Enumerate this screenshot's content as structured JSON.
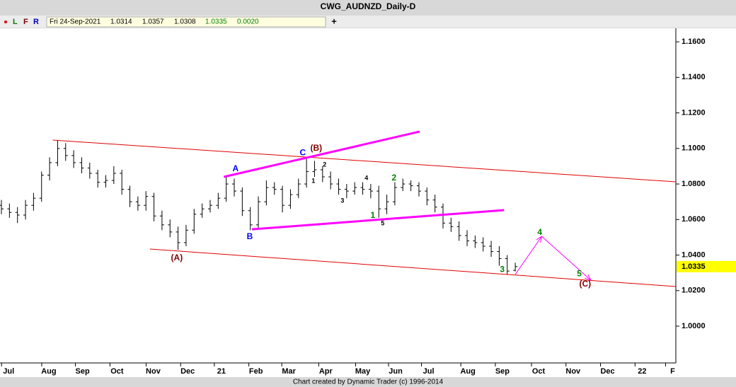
{
  "header": {
    "title": "CWG_AUDNZD_Daily-D",
    "flags": [
      "L",
      "F",
      "R"
    ],
    "date": "Fri 24-Sep-2021",
    "open": "1.0314",
    "high": "1.0357",
    "low": "1.0308",
    "close": "1.0335",
    "change": "0.0020",
    "plus": "+"
  },
  "footer": "Chart created by Dynamic Trader  (c) 1996-2014",
  "chart_data": {
    "type": "ohlc",
    "color": "#000000",
    "categories": [
      null,
      null,
      null,
      null,
      null,
      null,
      null,
      null,
      null,
      null,
      null,
      null,
      null,
      null,
      null,
      null,
      null,
      null,
      null,
      null,
      null,
      null,
      null,
      null,
      null,
      null,
      null,
      null,
      null,
      null,
      null,
      null,
      null,
      null,
      null,
      null,
      null,
      null,
      null,
      null,
      null,
      null,
      null,
      null,
      null,
      null,
      null,
      null,
      null,
      null,
      null,
      null,
      null,
      null,
      null,
      null,
      null,
      null,
      null,
      null,
      null,
      null,
      null,
      null,
      null
    ],
    "open": [
      1.068,
      1.066,
      1.064,
      1.0625,
      1.068,
      1.072,
      1.085,
      1.092,
      1.1,
      1.096,
      1.092,
      1.089,
      1.086,
      1.081,
      1.082,
      1.086,
      1.077,
      1.07,
      1.068,
      1.073,
      1.062,
      1.057,
      1.053,
      1.047,
      1.054,
      1.063,
      1.066,
      1.068,
      1.072,
      1.08,
      1.076,
      1.065,
      1.057,
      1.07,
      1.078,
      1.077,
      1.068,
      1.074,
      1.08,
      1.087,
      1.088,
      1.084,
      1.08,
      1.077,
      1.076,
      1.078,
      1.077,
      1.076,
      1.066,
      1.07,
      1.078,
      1.08,
      1.079,
      1.076,
      1.071,
      1.067,
      1.058,
      1.056,
      1.051,
      1.048,
      1.047,
      1.045,
      1.042,
      1.038,
      1.0314
    ],
    "high": [
      1.071,
      1.069,
      1.067,
      1.071,
      1.075,
      1.087,
      1.095,
      1.1045,
      1.103,
      1.099,
      1.095,
      1.092,
      1.088,
      1.085,
      1.09,
      1.088,
      1.079,
      1.073,
      1.076,
      1.075,
      1.065,
      1.06,
      1.056,
      1.057,
      1.066,
      1.069,
      1.071,
      1.075,
      1.084,
      1.083,
      1.078,
      1.067,
      1.073,
      1.082,
      1.081,
      1.079,
      1.077,
      1.083,
      1.095,
      1.093,
      1.09,
      1.087,
      1.083,
      1.08,
      1.081,
      1.081,
      1.08,
      1.079,
      1.074,
      1.081,
      1.083,
      1.082,
      1.081,
      1.078,
      1.074,
      1.069,
      1.061,
      1.059,
      1.054,
      1.051,
      1.05,
      1.048,
      1.045,
      1.04,
      1.0357
    ],
    "low": [
      1.063,
      1.061,
      1.058,
      1.06,
      1.065,
      1.07,
      1.082,
      1.09,
      1.093,
      1.089,
      1.086,
      1.083,
      1.078,
      1.078,
      1.08,
      1.074,
      1.067,
      1.065,
      1.065,
      1.059,
      1.054,
      1.05,
      1.043,
      1.045,
      1.052,
      1.061,
      1.064,
      1.066,
      1.07,
      1.073,
      1.062,
      1.054,
      1.055,
      1.068,
      1.074,
      1.064,
      1.066,
      1.072,
      1.078,
      1.084,
      1.081,
      1.077,
      1.074,
      1.072,
      1.074,
      1.074,
      1.072,
      1.061,
      1.063,
      1.068,
      1.076,
      1.076,
      1.073,
      1.068,
      1.064,
      1.055,
      1.053,
      1.048,
      1.045,
      1.044,
      1.042,
      1.039,
      1.034,
      1.029,
      1.0308
    ],
    "close": [
      1.066,
      1.064,
      1.0625,
      1.068,
      1.072,
      1.085,
      1.092,
      1.1,
      1.096,
      1.092,
      1.089,
      1.086,
      1.081,
      1.082,
      1.086,
      1.077,
      1.07,
      1.068,
      1.073,
      1.062,
      1.057,
      1.053,
      1.047,
      1.054,
      1.063,
      1.066,
      1.068,
      1.072,
      1.08,
      1.076,
      1.065,
      1.057,
      1.07,
      1.078,
      1.077,
      1.068,
      1.074,
      1.08,
      1.087,
      1.088,
      1.084,
      1.08,
      1.077,
      1.076,
      1.078,
      1.077,
      1.076,
      1.066,
      1.07,
      1.078,
      1.08,
      1.079,
      1.076,
      1.071,
      1.067,
      1.058,
      1.056,
      1.051,
      1.048,
      1.047,
      1.045,
      1.042,
      1.038,
      1.031,
      1.0335
    ],
    "xlim": [
      0,
      84
    ],
    "xticks": [
      {
        "value": 0.9,
        "label": "Jul"
      },
      {
        "value": 5.9,
        "label": "Aug"
      },
      {
        "value": 10.1,
        "label": "Sep"
      },
      {
        "value": 14.4,
        "label": "Oct"
      },
      {
        "value": 18.9,
        "label": "Nov"
      },
      {
        "value": 23.2,
        "label": "Dec"
      },
      {
        "value": 27.4,
        "label": "21"
      },
      {
        "value": 31.7,
        "label": "Feb"
      },
      {
        "value": 35.8,
        "label": "Mar"
      },
      {
        "value": 40.4,
        "label": "Apr"
      },
      {
        "value": 45,
        "label": "May"
      },
      {
        "value": 49.1,
        "label": "Jun"
      },
      {
        "value": 53.2,
        "label": "Jul"
      },
      {
        "value": 58.1,
        "label": "Aug"
      },
      {
        "value": 62.4,
        "label": "Sep"
      },
      {
        "value": 66.9,
        "label": "Oct"
      },
      {
        "value": 71.2,
        "label": "Nov"
      },
      {
        "value": 75.5,
        "label": "Dec"
      },
      {
        "value": 79.8,
        "label": "22"
      },
      {
        "value": 83.6,
        "label": "F"
      }
    ],
    "ylim": [
      0.9793,
      1.1676
    ],
    "yticks": [
      {
        "value": 1.0,
        "label": "1.0000"
      },
      {
        "value": 1.02,
        "label": "1.0200"
      },
      {
        "value": 1.04,
        "label": "1.0400"
      },
      {
        "value": 1.06,
        "label": "1.0600"
      },
      {
        "value": 1.08,
        "label": "1.0800"
      },
      {
        "value": 1.1,
        "label": "1.1000"
      },
      {
        "value": 1.12,
        "label": "1.1200"
      },
      {
        "value": 1.14,
        "label": "1.1400"
      },
      {
        "value": 1.16,
        "label": "1.1600"
      }
    ],
    "last_price_color": "#ffff00",
    "trendlines": [
      {
        "color": "#e00000",
        "width": 1,
        "points": [
          [
            6.4,
            1.1047
          ],
          [
            84,
            1.0812
          ]
        ]
      },
      {
        "color": "#e00000",
        "width": 1,
        "points": [
          [
            18.5,
            1.0434
          ],
          [
            84,
            1.0223
          ]
        ]
      },
      {
        "color": "#ff00ff",
        "width": 3,
        "points": [
          [
            27.7,
            1.084
          ],
          [
            52.1,
            1.1095
          ]
        ]
      },
      {
        "color": "#ff00ff",
        "width": 3,
        "points": [
          [
            31.2,
            1.0545
          ],
          [
            62.6,
            1.0653
          ]
        ]
      },
      {
        "color": "#ff00ff",
        "width": 1,
        "arrow": true,
        "points": [
          [
            64,
            1.0291
          ],
          [
            67.3,
            1.0505
          ],
          [
            73.4,
            1.0259
          ]
        ]
      }
    ],
    "annotations": [
      {
        "text": "(A)",
        "x": 21.85,
        "y": 1.0382,
        "color": "#800000"
      },
      {
        "text": "A",
        "x": 29.16,
        "y": 1.0884,
        "color": "#0000ff"
      },
      {
        "text": "B",
        "x": 30.93,
        "y": 1.0502,
        "color": "#0000ff"
      },
      {
        "text": "C",
        "x": 37.53,
        "y": 1.0975,
        "color": "#0000ff"
      },
      {
        "text": "(B)",
        "x": 39.21,
        "y": 1.0999,
        "color": "#800000"
      },
      {
        "text": "2",
        "x": 40.26,
        "y": 1.0907,
        "color": "#000000"
      },
      {
        "text": "1",
        "x": 38.85,
        "y": 1.0816,
        "color": "#000000"
      },
      {
        "text": "4",
        "x": 45.46,
        "y": 1.0832,
        "color": "#000000"
      },
      {
        "text": "3",
        "x": 42.47,
        "y": 1.0704,
        "color": "#000000"
      },
      {
        "text": "2",
        "x": 48.9,
        "y": 1.0832,
        "color": "#008000"
      },
      {
        "text": "1",
        "x": 46.26,
        "y": 1.0621,
        "color": "#008000"
      },
      {
        "text": "5",
        "x": 47.49,
        "y": 1.0577,
        "color": "#000000"
      },
      {
        "text": "3",
        "x": 62.38,
        "y": 1.0318,
        "color": "#008000"
      },
      {
        "text": "4",
        "x": 67.05,
        "y": 1.0526,
        "color": "#008000"
      },
      {
        "text": "5",
        "x": 71.98,
        "y": 1.0294,
        "color": "#008000"
      },
      {
        "text": "(C)",
        "x": 72.7,
        "y": 1.0235,
        "color": "#800000"
      }
    ]
  }
}
